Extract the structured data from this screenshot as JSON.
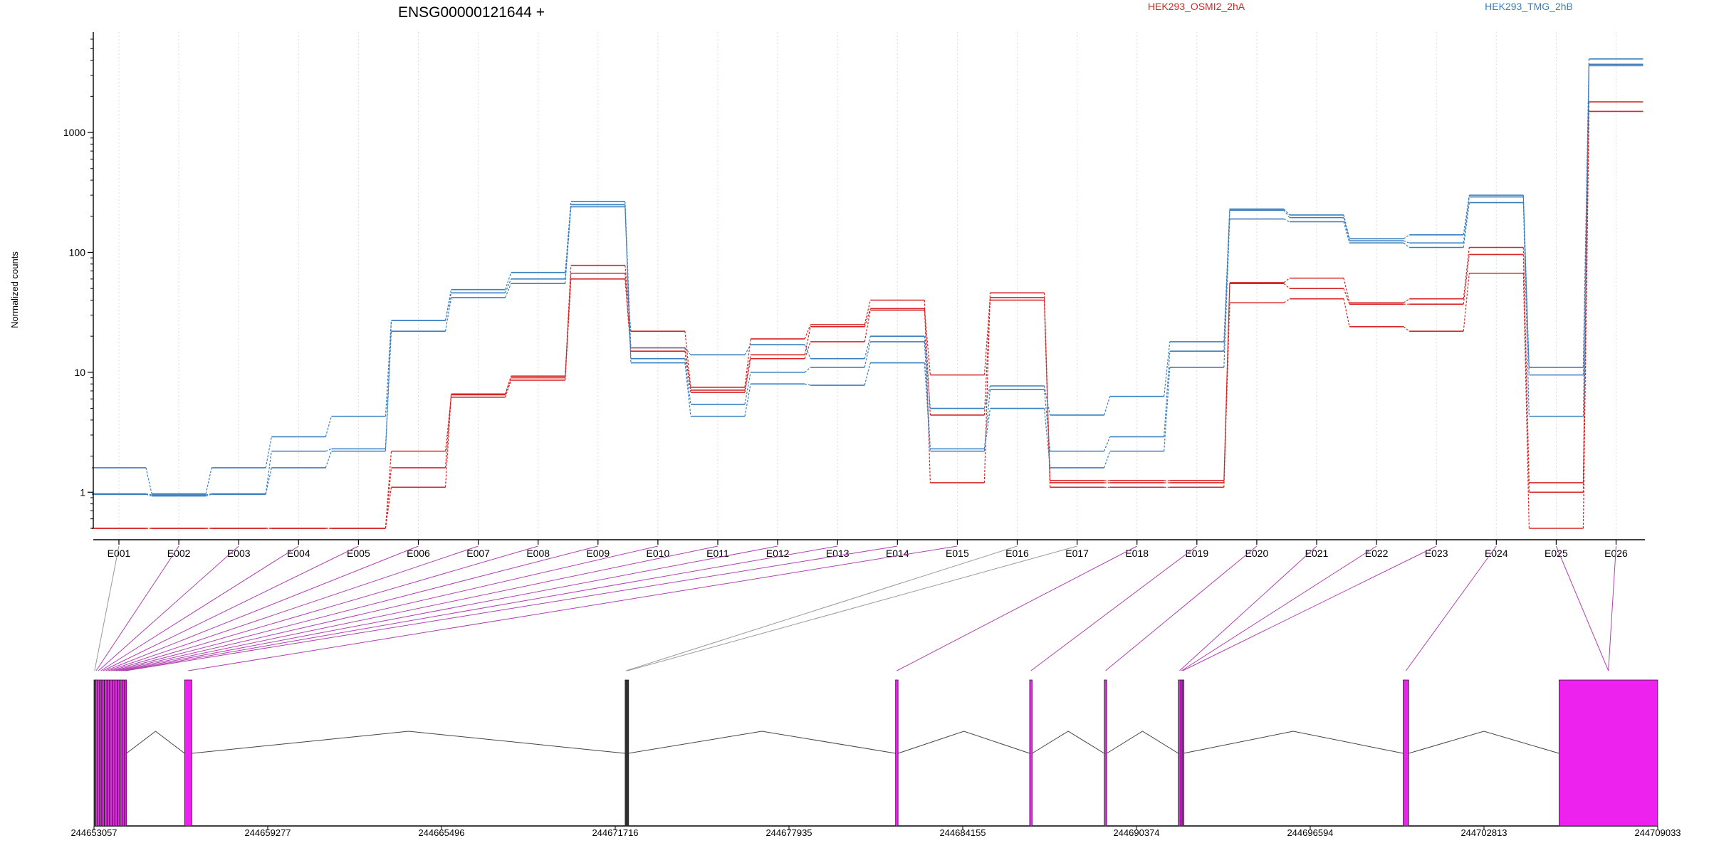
{
  "title": "ENSG00000121644 +",
  "legend": [
    {
      "name": "HEK293_OSMI2_2hA",
      "color": "#d62728"
    },
    {
      "name": "HEK293_TMG_2hB",
      "color": "#3a7fbf"
    }
  ],
  "colors": {
    "group_a": "#d62728",
    "group_b": "#3a7fbf",
    "exon_fill": "#ee22ee",
    "link_sig": "#b040b0",
    "link_plain": "#999999"
  },
  "chart_data": {
    "type": "line",
    "ylabel": "Normalized counts",
    "yscale": "log",
    "ylim": [
      0.5,
      6000
    ],
    "yticks": [
      1,
      10,
      100,
      1000
    ],
    "ytick_labels": [
      "1",
      "10",
      "100",
      "1000"
    ],
    "grid": "vertical-dotted",
    "legend_placement": "top",
    "categories": [
      "E001",
      "E002",
      "E003",
      "E004",
      "E005",
      "E006",
      "E007",
      "E008",
      "E009",
      "E010",
      "E011",
      "E012",
      "E013",
      "E014",
      "E015",
      "E016",
      "E017",
      "E018",
      "E019",
      "E020",
      "E021",
      "E022",
      "E023",
      "E024",
      "E025",
      "E026"
    ],
    "series": [
      {
        "group": "HEK293_OSMI2_2hA",
        "values": [
          0.5,
          0.5,
          0.5,
          0.5,
          0.5,
          2.2,
          6.2,
          8.6,
          60,
          15,
          6.8,
          13,
          18,
          33,
          4.4,
          40,
          1.1,
          1.1,
          1.1,
          38,
          41,
          24,
          22,
          67,
          0.5,
          1500
        ]
      },
      {
        "group": "HEK293_OSMI2_2hA",
        "values": [
          0.5,
          0.5,
          0.5,
          0.5,
          0.5,
          1.1,
          6.5,
          9.0,
          67,
          16,
          7.1,
          14,
          24,
          34,
          9.5,
          42,
          1.2,
          1.2,
          1.2,
          55,
          50,
          37,
          37,
          96,
          1.0,
          1800
        ]
      },
      {
        "group": "HEK293_OSMI2_2hA",
        "values": [
          0.5,
          0.5,
          0.5,
          0.5,
          0.5,
          1.6,
          6.6,
          9.3,
          78,
          22,
          7.5,
          19,
          25,
          40,
          1.2,
          46,
          1.25,
          1.25,
          1.25,
          56,
          61,
          38,
          41,
          110,
          1.2,
          3700
        ]
      },
      {
        "group": "HEK293_TMG_2hB",
        "values": [
          0.96,
          0.93,
          0.96,
          1.6,
          2.2,
          22,
          42,
          55,
          240,
          12,
          4.3,
          8.0,
          7.8,
          12,
          2.2,
          5.0,
          1.6,
          2.2,
          11,
          190,
          180,
          120,
          110,
          260,
          4.3,
          3600
        ]
      },
      {
        "group": "HEK293_TMG_2hB",
        "values": [
          0.97,
          0.95,
          0.97,
          2.2,
          2.3,
          27,
          46,
          60,
          250,
          13,
          5.4,
          10,
          11,
          18,
          2.3,
          7.2,
          2.2,
          2.9,
          15,
          225,
          195,
          125,
          120,
          290,
          9.5,
          3700
        ]
      },
      {
        "group": "HEK293_TMG_2hB",
        "values": [
          1.6,
          0.97,
          1.6,
          2.9,
          4.3,
          27,
          49,
          68,
          265,
          16,
          14,
          17,
          13,
          20,
          5.0,
          7.7,
          4.4,
          6.3,
          18,
          230,
          205,
          130,
          140,
          300,
          11,
          4100
        ]
      }
    ]
  },
  "gene_model": {
    "coordinate_labels": [
      "244653057",
      "244659277",
      "244665496",
      "244671716",
      "244677935",
      "244684155",
      "244690374",
      "244696594",
      "244702813",
      "244709033"
    ],
    "genomic_range": [
      244653057,
      244709033
    ],
    "exons": [
      {
        "id": "E001",
        "start": 244653057,
        "end": 244653100,
        "significant": false
      },
      {
        "id": "E002",
        "start": 244653110,
        "end": 244653160,
        "significant": true
      },
      {
        "id": "E003",
        "start": 244653170,
        "end": 244653260,
        "significant": true
      },
      {
        "id": "E004",
        "start": 244653270,
        "end": 244653330,
        "significant": true
      },
      {
        "id": "E005",
        "start": 244653340,
        "end": 244653420,
        "significant": true
      },
      {
        "id": "E006",
        "start": 244653430,
        "end": 244653520,
        "significant": true
      },
      {
        "id": "E007",
        "start": 244653530,
        "end": 244653610,
        "significant": true
      },
      {
        "id": "E008",
        "start": 244653620,
        "end": 244653710,
        "significant": true
      },
      {
        "id": "E009",
        "start": 244653720,
        "end": 244653800,
        "significant": true
      },
      {
        "id": "E010",
        "start": 244653810,
        "end": 244653890,
        "significant": true
      },
      {
        "id": "E011",
        "start": 244653900,
        "end": 244653980,
        "significant": true
      },
      {
        "id": "E012",
        "start": 244653990,
        "end": 244654060,
        "significant": true
      },
      {
        "id": "E013",
        "start": 244654070,
        "end": 244654150,
        "significant": true
      },
      {
        "id": "E014",
        "start": 244654160,
        "end": 244654220,
        "significant": true
      },
      {
        "id": "E015",
        "start": 244656300,
        "end": 244656560,
        "significant": true
      },
      {
        "id": "E016",
        "start": 244672070,
        "end": 244672130,
        "significant": false
      },
      {
        "id": "E017",
        "start": 244672130,
        "end": 244672180,
        "significant": false
      },
      {
        "id": "E018",
        "start": 244681750,
        "end": 244681840,
        "significant": true
      },
      {
        "id": "E019",
        "start": 244686550,
        "end": 244686640,
        "significant": true
      },
      {
        "id": "E020",
        "start": 244689220,
        "end": 244689310,
        "significant": true
      },
      {
        "id": "E021",
        "start": 244691870,
        "end": 244691960,
        "significant": true
      },
      {
        "id": "E022",
        "start": 244691960,
        "end": 244692010,
        "significant": true
      },
      {
        "id": "E023",
        "start": 244692010,
        "end": 244692050,
        "significant": true
      },
      {
        "id": "E024",
        "start": 244699920,
        "end": 244700120,
        "significant": true
      },
      {
        "id": "E025",
        "start": 244705500,
        "end": 244709033,
        "significant": true
      },
      {
        "id": "E026",
        "start": 244705500,
        "end": 244709033,
        "significant": true
      }
    ]
  }
}
